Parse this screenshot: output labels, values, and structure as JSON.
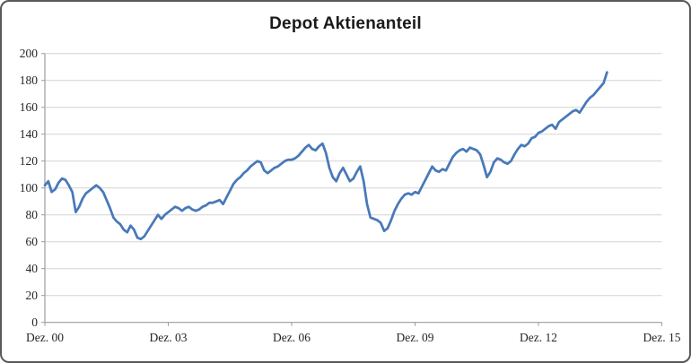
{
  "chart_data": {
    "type": "line",
    "title": "Depot Aktienanteil",
    "xlabel": "",
    "ylabel": "",
    "x_tick_labels": [
      "Dez. 00",
      "Dez. 03",
      "Dez. 06",
      "Dez. 09",
      "Dez. 12",
      "Dez. 15"
    ],
    "x_tick_months": [
      0,
      36,
      72,
      108,
      144,
      180
    ],
    "x_range_months": [
      0,
      180
    ],
    "ylim": [
      0,
      200
    ],
    "y_tick_step": 20,
    "y_tick_labels": [
      "0",
      "20",
      "40",
      "60",
      "80",
      "100",
      "120",
      "140",
      "160",
      "180",
      "200"
    ],
    "grid": true,
    "legend": false,
    "series": [
      {
        "name": "Depot Aktienanteil",
        "start_tick_label": "Dez. 00",
        "interval": "monthly",
        "values": [
          102,
          105,
          97,
          99,
          104,
          107,
          106,
          102,
          97,
          82,
          86,
          92,
          96,
          98,
          100,
          102,
          100,
          97,
          91,
          85,
          78,
          75,
          73,
          69,
          67,
          72,
          69,
          63,
          62,
          64,
          68,
          72,
          76,
          80,
          77,
          80,
          82,
          84,
          86,
          85,
          83,
          85,
          86,
          84,
          83,
          84,
          86,
          87,
          89,
          89,
          90,
          91,
          88,
          93,
          98,
          103,
          106,
          108,
          111,
          113,
          116,
          118,
          120,
          119,
          113,
          111,
          113,
          115,
          116,
          118,
          120,
          121,
          121,
          122,
          124,
          127,
          130,
          132,
          129,
          128,
          131,
          133,
          126,
          115,
          108,
          105,
          111,
          115,
          110,
          105,
          107,
          112,
          116,
          105,
          88,
          78,
          77,
          76,
          74,
          68,
          70,
          76,
          83,
          88,
          92,
          95,
          96,
          95,
          97,
          96,
          101,
          106,
          111,
          116,
          113,
          112,
          114,
          113,
          118,
          123,
          126,
          128,
          129,
          127,
          130,
          129,
          128,
          125,
          117,
          108,
          112,
          119,
          122,
          121,
          119,
          118,
          120,
          125,
          129,
          132,
          131,
          133,
          137,
          138,
          141,
          142,
          144,
          146,
          147,
          144,
          149,
          151,
          153,
          155,
          157,
          158,
          156,
          160,
          164,
          167,
          169,
          172,
          175,
          178,
          186
        ]
      }
    ],
    "colors": {
      "line": "#4879b8",
      "grid": "#d4d4d4",
      "axis": "#9c9c9c",
      "tick": "#9c9c9c",
      "text": "#262626",
      "title": "#1a1a1a",
      "frame_border": "#595959",
      "background": "#ffffff"
    }
  }
}
